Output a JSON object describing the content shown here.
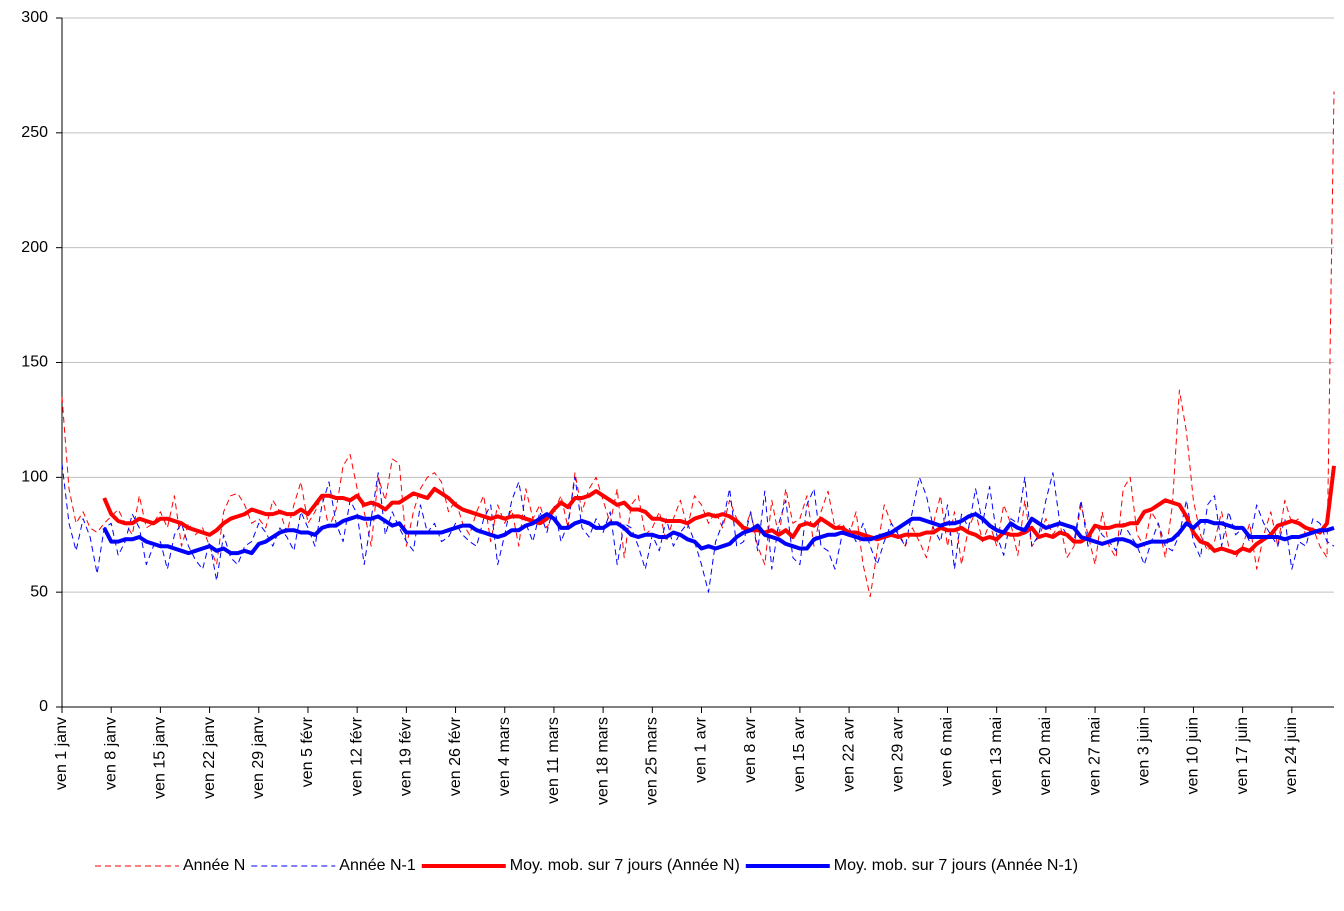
{
  "chart_data": {
    "type": "line",
    "categories": [
      "ven 1 janv",
      null,
      null,
      null,
      null,
      null,
      null,
      "ven 8 janv",
      null,
      null,
      null,
      null,
      null,
      null,
      "ven 15 janv",
      null,
      null,
      null,
      null,
      null,
      null,
      "ven 22 janv",
      null,
      null,
      null,
      null,
      null,
      null,
      "ven 29 janv",
      null,
      null,
      null,
      null,
      null,
      null,
      "ven 5 févr",
      null,
      null,
      null,
      null,
      null,
      null,
      "ven 12 févr",
      null,
      null,
      null,
      null,
      null,
      null,
      "ven 19 févr",
      null,
      null,
      null,
      null,
      null,
      null,
      "ven 26 févr",
      null,
      null,
      null,
      null,
      null,
      null,
      "ven 4 mars",
      null,
      null,
      null,
      null,
      null,
      null,
      "ven 11 mars",
      null,
      null,
      null,
      null,
      null,
      null,
      "ven 18 mars",
      null,
      null,
      null,
      null,
      null,
      null,
      "ven 25 mars",
      null,
      null,
      null,
      null,
      null,
      null,
      "ven 1 avr",
      null,
      null,
      null,
      null,
      null,
      null,
      "ven 8 avr",
      null,
      null,
      null,
      null,
      null,
      null,
      "ven 15 avr",
      null,
      null,
      null,
      null,
      null,
      null,
      "ven 22 avr",
      null,
      null,
      null,
      null,
      null,
      null,
      "ven 29 avr",
      null,
      null,
      null,
      null,
      null,
      null,
      "ven 6 mai",
      null,
      null,
      null,
      null,
      null,
      null,
      "ven 13 mai",
      null,
      null,
      null,
      null,
      null,
      null,
      "ven 20 mai",
      null,
      null,
      null,
      null,
      null,
      null,
      "ven 27 mai",
      null,
      null,
      null,
      null,
      null,
      null,
      "ven 3 juin",
      null,
      null,
      null,
      null,
      null,
      null,
      "ven 10 juin",
      null,
      null,
      null,
      null,
      null,
      null,
      "ven 17 juin",
      null,
      null,
      null,
      null,
      null,
      null,
      "ven 24 juin",
      null,
      null,
      null,
      null,
      null,
      null
    ],
    "series": [
      {
        "name": "Année N",
        "color": "#ff0000",
        "dashed": true,
        "width": 1,
        "values": [
          135,
          95,
          80,
          85,
          78,
          76,
          80,
          83,
          86,
          80,
          75,
          92,
          78,
          80,
          85,
          78,
          92,
          70,
          80,
          75,
          78,
          70,
          62,
          85,
          92,
          93,
          88,
          80,
          82,
          78,
          90,
          85,
          76,
          88,
          98,
          80,
          85,
          92,
          78,
          86,
          105,
          110,
          95,
          85,
          70,
          100,
          90,
          108,
          106,
          70,
          85,
          95,
          100,
          102,
          98,
          85,
          90,
          80,
          75,
          85,
          92,
          72,
          88,
          80,
          86,
          70,
          95,
          82,
          88,
          78,
          85,
          92,
          78,
          102,
          85,
          95,
          100,
          90,
          80,
          95,
          65,
          88,
          92,
          75,
          78,
          85,
          72,
          82,
          90,
          78,
          92,
          88,
          80,
          85,
          78,
          90,
          82,
          76,
          85,
          70,
          62,
          90,
          74,
          95,
          80,
          82,
          92,
          70,
          85,
          94,
          78,
          80,
          75,
          85,
          62,
          48,
          68,
          88,
          80,
          76,
          70,
          78,
          72,
          65,
          80,
          92,
          70,
          85,
          62,
          78,
          85,
          72,
          80,
          70,
          88,
          80,
          66,
          90,
          70,
          74,
          82,
          75,
          80,
          65,
          70,
          88,
          75,
          62,
          85,
          70,
          65,
          95,
          100,
          75,
          70,
          85,
          80,
          65,
          88,
          138,
          120,
          90,
          75,
          68,
          72,
          85,
          70,
          65,
          70,
          80,
          60,
          75,
          85,
          70,
          90,
          80,
          82,
          75,
          78,
          70,
          65,
          268
        ]
      },
      {
        "name": "Année N-1",
        "color": "#0000ff",
        "dashed": true,
        "width": 1,
        "values": [
          106,
          80,
          68,
          82,
          74,
          58,
          78,
          80,
          66,
          72,
          84,
          78,
          62,
          70,
          72,
          60,
          75,
          80,
          70,
          64,
          60,
          72,
          55,
          75,
          65,
          62,
          70,
          72,
          80,
          76,
          70,
          78,
          74,
          68,
          85,
          78,
          70,
          88,
          98,
          80,
          72,
          90,
          84,
          62,
          82,
          102,
          75,
          85,
          78,
          72,
          68,
          88,
          76,
          80,
          72,
          74,
          80,
          75,
          72,
          70,
          82,
          88,
          62,
          75,
          90,
          98,
          80,
          72,
          85,
          76,
          88,
          72,
          80,
          100,
          78,
          74,
          82,
          76,
          85,
          62,
          80,
          78,
          70,
          60,
          75,
          68,
          82,
          70,
          76,
          80,
          72,
          62,
          50,
          72,
          80,
          95,
          70,
          72,
          85,
          68,
          94,
          60,
          80,
          90,
          65,
          62,
          88,
          95,
          70,
          68,
          60,
          75,
          78,
          72,
          80,
          70,
          62,
          72,
          80,
          75,
          70,
          85,
          100,
          92,
          78,
          72,
          88,
          60,
          84,
          78,
          95,
          80,
          96,
          75,
          66,
          82,
          80,
          100,
          70,
          75,
          90,
          102,
          80,
          75,
          72,
          90,
          70,
          80,
          75,
          72,
          68,
          80,
          75,
          70,
          62,
          72,
          80,
          70,
          68,
          75,
          90,
          72,
          65,
          88,
          92,
          70,
          85,
          75,
          78,
          72,
          88,
          80,
          75,
          70,
          82,
          60,
          72,
          70,
          82,
          80,
          72,
          70
        ]
      },
      {
        "name": "Moy. mob. sur 7 jours (Année N)",
        "color": "#ff0000",
        "dashed": false,
        "width": 4,
        "values": [
          null,
          null,
          null,
          null,
          null,
          null,
          91,
          84,
          81,
          80,
          80,
          82,
          81,
          80,
          82,
          82,
          81,
          80,
          78,
          77,
          76,
          75,
          77,
          80,
          82,
          83,
          84,
          86,
          85,
          84,
          84,
          85,
          84,
          84,
          86,
          84,
          88,
          92,
          92,
          91,
          91,
          90,
          92,
          88,
          89,
          88,
          86,
          89,
          89,
          91,
          93,
          92,
          91,
          95,
          93,
          91,
          88,
          86,
          85,
          84,
          83,
          82,
          83,
          82,
          83,
          83,
          82,
          81,
          80,
          82,
          86,
          89,
          87,
          91,
          91,
          92,
          94,
          92,
          90,
          88,
          89,
          86,
          86,
          85,
          82,
          82,
          81,
          81,
          81,
          80,
          82,
          83,
          84,
          83,
          84,
          83,
          81,
          78,
          77,
          77,
          76,
          77,
          75,
          77,
          74,
          79,
          80,
          79,
          82,
          80,
          78,
          78,
          76,
          76,
          75,
          74,
          73,
          74,
          75,
          74,
          75,
          75,
          75,
          76,
          76,
          78,
          77,
          77,
          78,
          76,
          75,
          73,
          74,
          73,
          76,
          75,
          75,
          76,
          78,
          74,
          75,
          74,
          76,
          75,
          72,
          72,
          74,
          79,
          78,
          78,
          79,
          79,
          80,
          80,
          85,
          86,
          88,
          90,
          89,
          88,
          83,
          76,
          72,
          71,
          68,
          69,
          68,
          67,
          69,
          68,
          71,
          73,
          75,
          79,
          80,
          81,
          80,
          78,
          77,
          76,
          80,
          105
        ]
      },
      {
        "name": "Moy. mob. sur 7 jours (Année N-1)",
        "color": "#0000ff",
        "dashed": false,
        "width": 4,
        "values": [
          null,
          null,
          null,
          null,
          null,
          null,
          78,
          72,
          72,
          73,
          73,
          74,
          72,
          71,
          70,
          70,
          69,
          68,
          67,
          68,
          69,
          70,
          68,
          69,
          67,
          67,
          68,
          67,
          71,
          72,
          74,
          76,
          77,
          77,
          76,
          76,
          75,
          78,
          79,
          79,
          81,
          82,
          83,
          82,
          82,
          83,
          81,
          79,
          80,
          76,
          76,
          76,
          76,
          76,
          76,
          77,
          78,
          79,
          79,
          77,
          76,
          75,
          74,
          75,
          77,
          77,
          79,
          80,
          82,
          84,
          82,
          78,
          78,
          80,
          81,
          80,
          78,
          78,
          80,
          80,
          78,
          75,
          74,
          75,
          75,
          74,
          74,
          76,
          75,
          73,
          72,
          69,
          70,
          69,
          70,
          71,
          74,
          76,
          77,
          79,
          75,
          74,
          73,
          71,
          70,
          69,
          69,
          73,
          74,
          75,
          75,
          76,
          75,
          74,
          73,
          73,
          74,
          75,
          76,
          78,
          80,
          82,
          82,
          81,
          80,
          79,
          80,
          80,
          81,
          83,
          84,
          82,
          79,
          77,
          76,
          80,
          78,
          77,
          82,
          80,
          78,
          79,
          80,
          79,
          78,
          74,
          73,
          72,
          71,
          72,
          73,
          73,
          72,
          70,
          71,
          72,
          72,
          72,
          73,
          76,
          80,
          78,
          81,
          81,
          80,
          80,
          79,
          78,
          78,
          74,
          74,
          74,
          74,
          74,
          73,
          74,
          74,
          75,
          76,
          77,
          77,
          78
        ]
      }
    ],
    "ylim": [
      0,
      300
    ],
    "yticks": [
      0,
      50,
      100,
      150,
      200,
      250,
      300
    ],
    "grid": true,
    "legend": "bottom"
  }
}
